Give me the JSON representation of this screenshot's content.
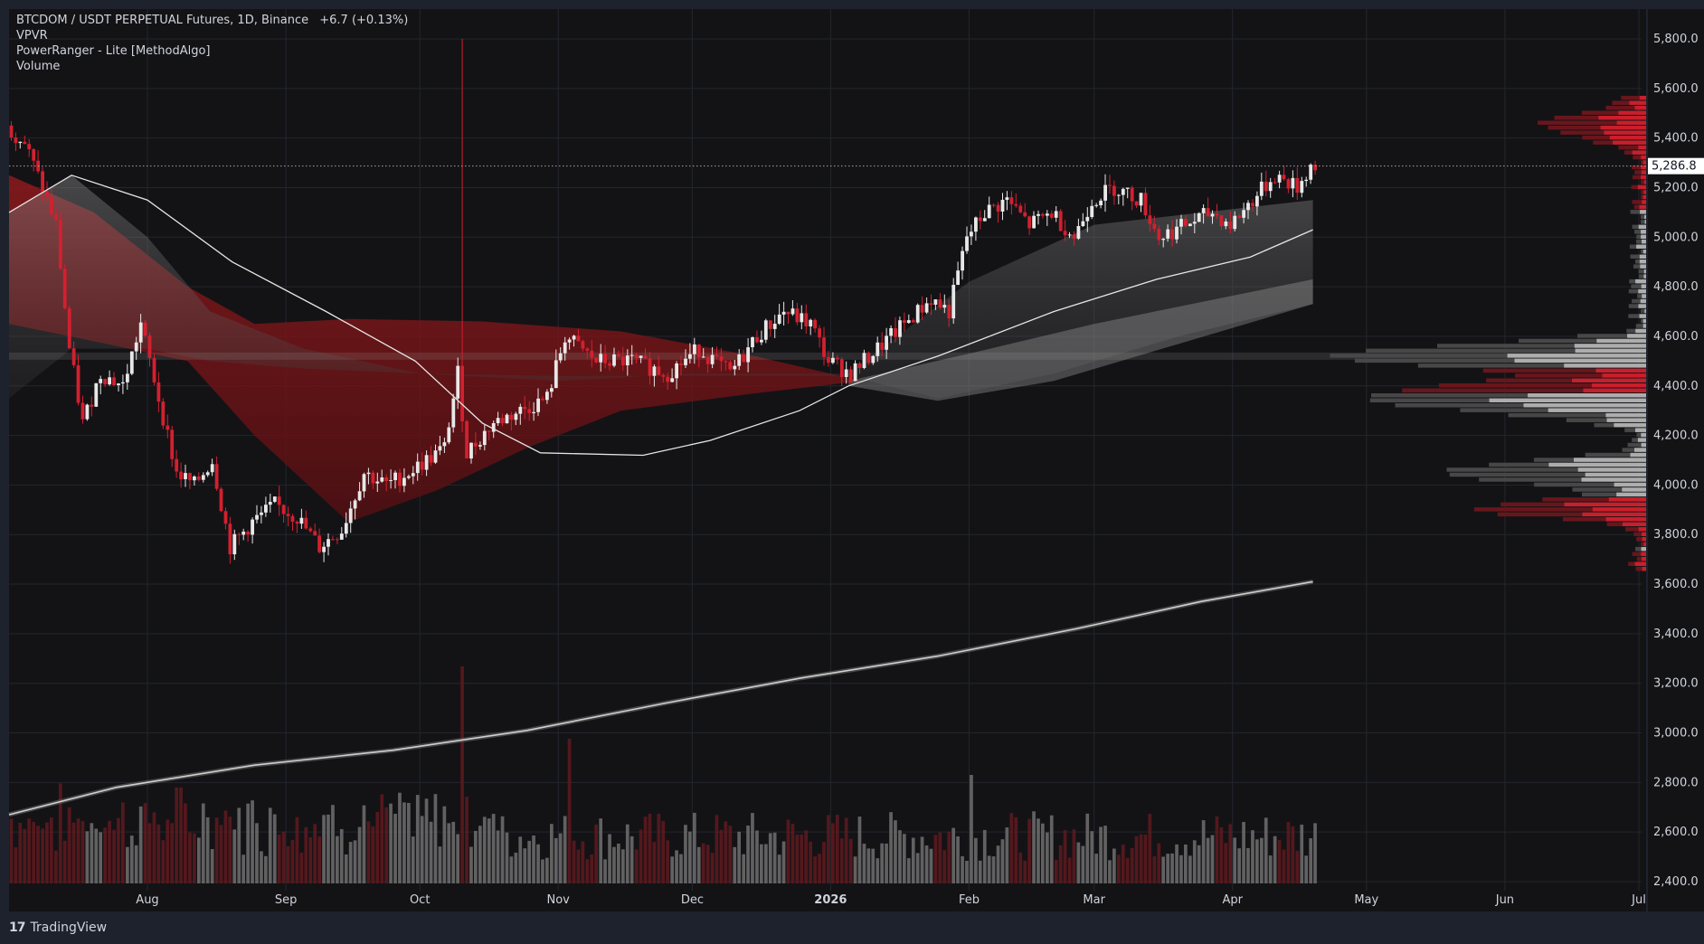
{
  "legend": {
    "symbol": "BTCDOM / USDT PERPETUAL Futures, 1D, Binance",
    "change": "+6.7 (+0.13%)",
    "indicators": [
      "VPVR",
      "PowerRanger - Lite [MethodAlgo]",
      "Volume"
    ]
  },
  "branding": {
    "logo_mark": "17",
    "name": "TradingView"
  },
  "colors": {
    "background": "#131316",
    "frame": "#1e222d",
    "up": "#e8e8e8",
    "down": "#d3202f",
    "grid": "#23262d",
    "axis_text": "#d1d4dc"
  },
  "chart_data": {
    "type": "candlestick",
    "title": "BTCDOM / USDT PERPETUAL Futures, 1D, Binance",
    "ylim": [
      2400,
      5800
    ],
    "y_ticks": [
      "5,800.0",
      "5,600.0",
      "5,400.0",
      "5,200.0",
      "5,000.0",
      "4,800.0",
      "4,600.0",
      "4,400.0",
      "4,200.0",
      "4,000.0",
      "3,800.0",
      "3,600.0",
      "3,400.0",
      "3,200.0",
      "3,000.0",
      "2,800.0",
      "2,600.0",
      "2,400.0"
    ],
    "x_ticks": [
      "Aug",
      "Sep",
      "Oct",
      "Nov",
      "Dec",
      "2026",
      "Feb",
      "Mar",
      "Apr",
      "May",
      "Jun",
      "Jul"
    ],
    "last_price": "5,286.8",
    "price_path": [
      [
        "2025-07-01",
        5450
      ],
      [
        "2025-07-05",
        5380
      ],
      [
        "2025-07-09",
        5200
      ],
      [
        "2025-07-12",
        5050
      ],
      [
        "2025-07-15",
        4550
      ],
      [
        "2025-07-18",
        4250
      ],
      [
        "2025-07-22",
        4450
      ],
      [
        "2025-07-27",
        4400
      ],
      [
        "2025-07-31",
        4650
      ],
      [
        "2025-08-04",
        4350
      ],
      [
        "2025-08-08",
        4050
      ],
      [
        "2025-08-12",
        4000
      ],
      [
        "2025-08-16",
        4100
      ],
      [
        "2025-08-20",
        3750
      ],
      [
        "2025-08-25",
        3850
      ],
      [
        "2025-08-30",
        3920
      ],
      [
        "2025-09-04",
        3870
      ],
      [
        "2025-09-09",
        3750
      ],
      [
        "2025-09-14",
        3820
      ],
      [
        "2025-09-19",
        4050
      ],
      [
        "2025-09-24",
        4000
      ],
      [
        "2025-09-29",
        4050
      ],
      [
        "2025-10-03",
        4100
      ],
      [
        "2025-10-07",
        4150
      ],
      [
        "2025-10-10",
        4450
      ],
      [
        "2025-10-12",
        4130
      ],
      [
        "2025-10-18",
        4250
      ],
      [
        "2025-10-24",
        4300
      ],
      [
        "2025-10-30",
        4350
      ],
      [
        "2025-11-03",
        4600
      ],
      [
        "2025-11-10",
        4500
      ],
      [
        "2025-11-18",
        4500
      ],
      [
        "2025-11-26",
        4450
      ],
      [
        "2025-12-03",
        4550
      ],
      [
        "2025-12-10",
        4450
      ],
      [
        "2025-12-16",
        4600
      ],
      [
        "2025-12-22",
        4700
      ],
      [
        "2025-12-28",
        4650
      ],
      [
        "2026-01-01",
        4500
      ],
      [
        "2026-01-06",
        4450
      ],
      [
        "2026-01-12",
        4550
      ],
      [
        "2026-01-18",
        4650
      ],
      [
        "2026-01-24",
        4750
      ],
      [
        "2026-01-28",
        4700
      ],
      [
        "2026-02-01",
        5000
      ],
      [
        "2026-02-05",
        5100
      ],
      [
        "2026-02-10",
        5150
      ],
      [
        "2026-02-15",
        5050
      ],
      [
        "2026-02-20",
        5100
      ],
      [
        "2026-02-25",
        5000
      ],
      [
        "2026-03-01",
        5150
      ],
      [
        "2026-03-06",
        5200
      ],
      [
        "2026-03-12",
        5150
      ],
      [
        "2026-03-16",
        5000
      ],
      [
        "2026-03-22",
        5050
      ],
      [
        "2026-03-28",
        5100
      ],
      [
        "2026-04-01",
        5050
      ],
      [
        "2026-04-06",
        5150
      ],
      [
        "2026-04-11",
        5250
      ],
      [
        "2026-04-16",
        5200
      ],
      [
        "2026-04-19",
        5287
      ]
    ],
    "moving_average": [
      [
        "2025-07-01",
        5100
      ],
      [
        "2025-07-15",
        5250
      ],
      [
        "2025-08-01",
        5150
      ],
      [
        "2025-08-20",
        4900
      ],
      [
        "2025-09-10",
        4700
      ],
      [
        "2025-09-30",
        4500
      ],
      [
        "2025-10-15",
        4250
      ],
      [
        "2025-10-28",
        4130
      ],
      [
        "2025-11-20",
        4120
      ],
      [
        "2025-12-05",
        4180
      ],
      [
        "2025-12-25",
        4300
      ],
      [
        "2026-01-05",
        4400
      ],
      [
        "2026-01-25",
        4520
      ],
      [
        "2026-02-20",
        4700
      ],
      [
        "2026-03-15",
        4830
      ],
      [
        "2026-04-05",
        4920
      ],
      [
        "2026-04-19",
        5030
      ]
    ],
    "long_moving_average": [
      [
        "2025-07-01",
        2670
      ],
      [
        "2025-07-25",
        2780
      ],
      [
        "2025-08-25",
        2870
      ],
      [
        "2025-09-25",
        2930
      ],
      [
        "2025-10-25",
        3010
      ],
      [
        "2025-11-25",
        3120
      ],
      [
        "2025-12-25",
        3220
      ],
      [
        "2026-01-25",
        3310
      ],
      [
        "2026-02-25",
        3420
      ],
      [
        "2026-03-25",
        3530
      ],
      [
        "2026-04-19",
        3610
      ]
    ],
    "volume_profile_levels": [
      5450,
      4520,
      4350,
      4050,
      3900
    ]
  }
}
